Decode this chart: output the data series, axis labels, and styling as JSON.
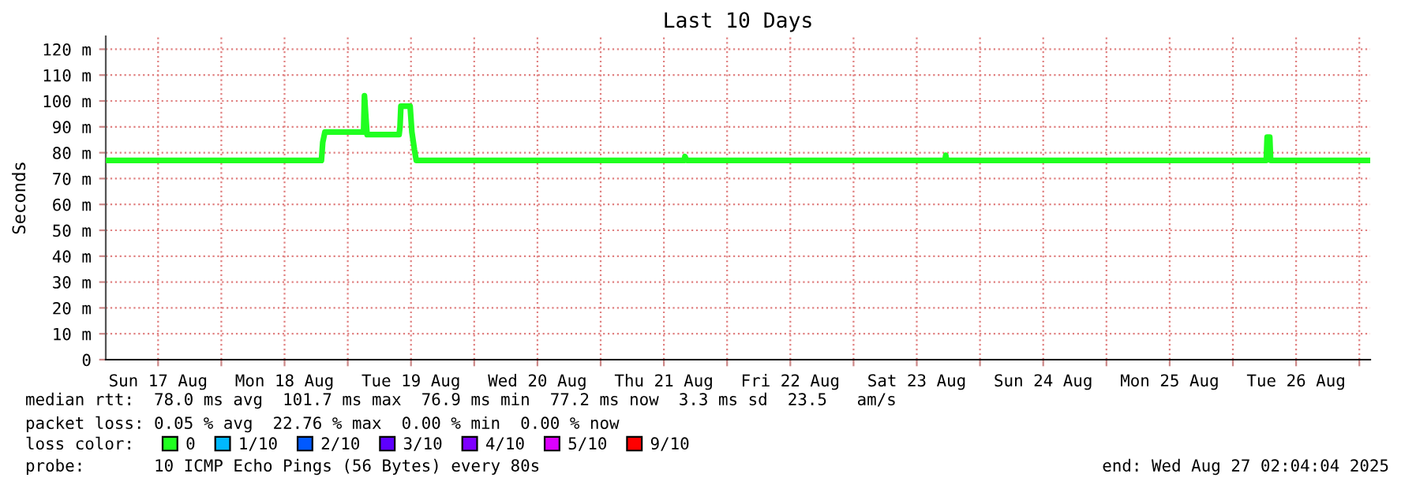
{
  "chart_data": {
    "type": "line",
    "title": "Last 10 Days",
    "ylabel": "Seconds",
    "x": [
      "2025-08-17T02:04",
      "2025-08-18T19:00",
      "2025-08-18T19:15",
      "2025-08-18T19:40",
      "2025-08-19T03:00",
      "2025-08-19T03:10",
      "2025-08-19T03:40",
      "2025-08-19T09:45",
      "2025-08-19T09:55",
      "2025-08-19T10:05",
      "2025-08-19T11:50",
      "2025-08-19T12:10",
      "2025-08-19T12:40",
      "2025-08-19T13:00",
      "2025-08-21T15:50",
      "2025-08-21T16:00",
      "2025-08-21T16:20",
      "2025-08-23T17:20",
      "2025-08-23T17:30",
      "2025-08-23T17:40",
      "2025-08-26T06:20",
      "2025-08-26T06:30",
      "2025-08-26T07:00",
      "2025-08-26T07:10",
      "2025-08-27T02:04"
    ],
    "series": [
      {
        "name": "0",
        "color": "#20ff20",
        "values": [
          77,
          77,
          84,
          88,
          88,
          102,
          87,
          87,
          90,
          98,
          98,
          88,
          81,
          77,
          77,
          78.5,
          77,
          77,
          79,
          77,
          77,
          86,
          86,
          77,
          77
        ]
      },
      {
        "name": "1/10",
        "color": "#00b8ff",
        "values": [
          null,
          null,
          null,
          null,
          null,
          null,
          null,
          null,
          null,
          null,
          null,
          null,
          null,
          null,
          null,
          null,
          null,
          null,
          null,
          null,
          null,
          null,
          null,
          null,
          null
        ]
      },
      {
        "name": "2/10",
        "color": "#0059ff",
        "values": [
          null,
          null,
          null,
          null,
          null,
          null,
          null,
          null,
          null,
          null,
          null,
          null,
          null,
          null,
          null,
          null,
          null,
          null,
          null,
          null,
          null,
          null,
          null,
          null,
          null
        ]
      },
      {
        "name": "3/10",
        "color": "#5e00ff",
        "values": [
          null,
          null,
          null,
          null,
          null,
          null,
          null,
          null,
          null,
          null,
          null,
          null,
          null,
          null,
          null,
          null,
          null,
          null,
          null,
          null,
          null,
          null,
          null,
          null,
          null
        ]
      },
      {
        "name": "4/10",
        "color": "#7e00ff",
        "values": [
          null,
          null,
          null,
          null,
          null,
          null,
          null,
          null,
          null,
          null,
          null,
          null,
          null,
          null,
          null,
          null,
          null,
          null,
          null,
          null,
          null,
          null,
          null,
          null,
          null
        ]
      },
      {
        "name": "5/10",
        "color": "#dd00ff",
        "values": [
          null,
          null,
          null,
          null,
          null,
          null,
          null,
          null,
          null,
          null,
          null,
          null,
          null,
          null,
          null,
          null,
          null,
          null,
          null,
          null,
          null,
          null,
          null,
          null,
          null
        ]
      },
      {
        "name": "9/10",
        "color": "#ff0000",
        "values": [
          null,
          null,
          null,
          null,
          null,
          null,
          null,
          null,
          null,
          null,
          null,
          null,
          null,
          null,
          null,
          null,
          null,
          null,
          null,
          null,
          null,
          null,
          null,
          null,
          null
        ]
      }
    ],
    "legend": "bottom",
    "legend_title": "loss color:",
    "xlim": [
      "2025-08-17T02:04",
      "2025-08-27T02:04"
    ],
    "xticks": [
      {
        "value": "2025-08-17T12:00",
        "label": "Sun 17 Aug"
      },
      {
        "value": "2025-08-18T00:00",
        "label": null
      },
      {
        "value": "2025-08-18T12:00",
        "label": "Mon 18 Aug"
      },
      {
        "value": "2025-08-19T00:00",
        "label": null
      },
      {
        "value": "2025-08-19T12:00",
        "label": "Tue 19 Aug"
      },
      {
        "value": "2025-08-20T00:00",
        "label": null
      },
      {
        "value": "2025-08-20T12:00",
        "label": "Wed 20 Aug"
      },
      {
        "value": "2025-08-21T00:00",
        "label": null
      },
      {
        "value": "2025-08-21T12:00",
        "label": "Thu 21 Aug"
      },
      {
        "value": "2025-08-22T00:00",
        "label": null
      },
      {
        "value": "2025-08-22T12:00",
        "label": "Fri 22 Aug"
      },
      {
        "value": "2025-08-23T00:00",
        "label": null
      },
      {
        "value": "2025-08-23T12:00",
        "label": "Sat 23 Aug"
      },
      {
        "value": "2025-08-24T00:00",
        "label": null
      },
      {
        "value": "2025-08-24T12:00",
        "label": "Sun 24 Aug"
      },
      {
        "value": "2025-08-25T00:00",
        "label": null
      },
      {
        "value": "2025-08-25T12:00",
        "label": "Mon 25 Aug"
      },
      {
        "value": "2025-08-26T00:00",
        "label": null
      },
      {
        "value": "2025-08-26T12:00",
        "label": "Tue 26 Aug"
      },
      {
        "value": "2025-08-27T00:00",
        "label": null
      }
    ],
    "ylim": [
      0,
      125
    ],
    "yticks": [
      0,
      {
        "value": 10,
        "label": "10 m"
      },
      {
        "value": 20,
        "label": "20 m"
      },
      {
        "value": 30,
        "label": "30 m"
      },
      {
        "value": 40,
        "label": "40 m"
      },
      {
        "value": 50,
        "label": "50 m"
      },
      {
        "value": 60,
        "label": "60 m"
      },
      {
        "value": 70,
        "label": "70 m"
      },
      {
        "value": 80,
        "label": "80 m"
      },
      {
        "value": 90,
        "label": "90 m"
      },
      {
        "value": 100,
        "label": "100 m"
      },
      {
        "value": 110,
        "label": "110 m"
      },
      {
        "value": 120,
        "label": "120 m"
      }
    ],
    "grid": true,
    "marker": "none",
    "line_style": "solid",
    "annotations": [
      "median rtt:  78.0 ms avg  101.7 ms max  76.9 ms min  77.2 ms now  3.3 ms sd  23.5   am/s",
      "packet loss: 0.05 % avg  22.76 % max  0.00 % min  0.00 % now",
      "probe:       10 ICMP Echo Pings (56 Bytes) every 80s",
      "end: Wed Aug 27 02:04:04 2025"
    ]
  }
}
